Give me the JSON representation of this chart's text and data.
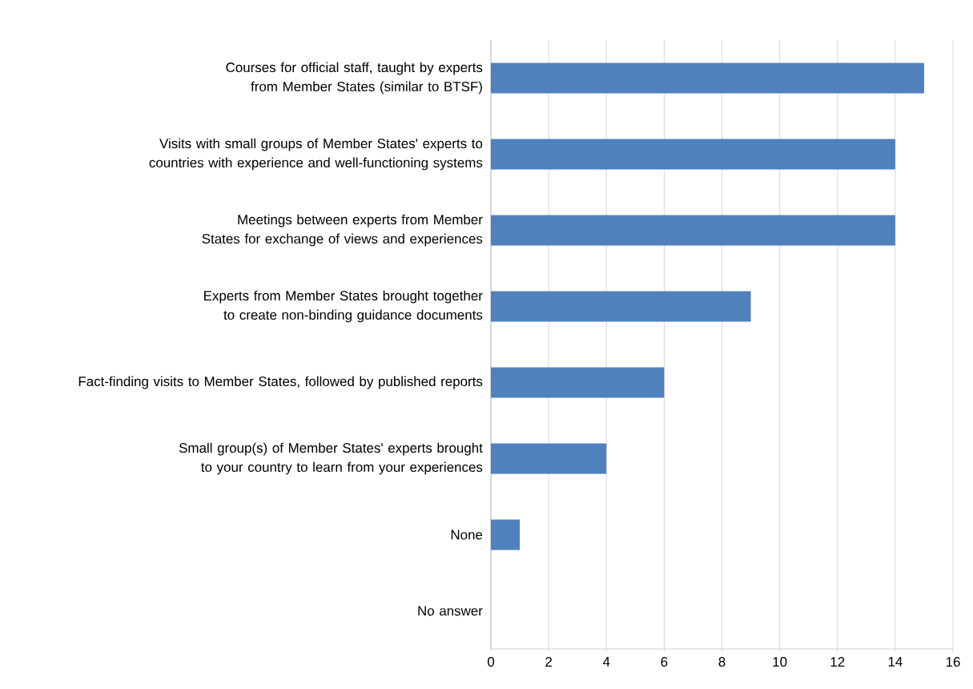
{
  "chart_data": {
    "type": "bar",
    "orientation": "horizontal",
    "categories": [
      "Courses for official staff, taught by experts from Member States (similar to BTSF)",
      "Visits with small groups of Member States' experts to countries with experience and well-functioning systems",
      "Meetings between experts from Member States for exchange of views and experiences",
      "Experts from Member States brought together to create non-binding guidance documents",
      "Fact-finding visits to Member States, followed by published reports",
      "Small group(s) of Member States' experts brought to your country to learn from your experiences",
      "None",
      "No answer"
    ],
    "values": [
      15,
      14,
      14,
      9,
      6,
      4,
      1,
      0
    ],
    "color": "#4f81bd",
    "xlim": [
      0,
      16
    ],
    "xticks": [
      0,
      2,
      4,
      6,
      8,
      10,
      12,
      14,
      16
    ],
    "grid": "x"
  }
}
